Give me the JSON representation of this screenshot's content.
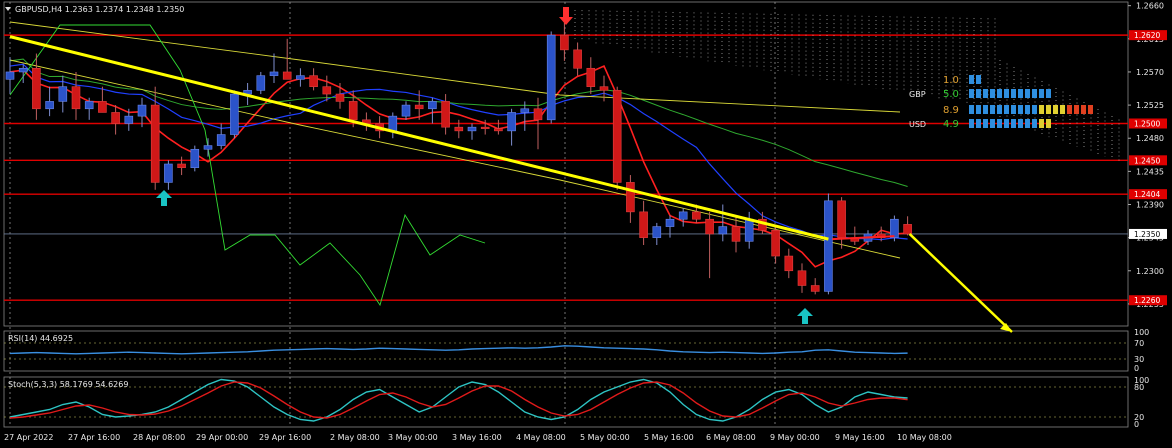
{
  "colors": {
    "background": "#000000",
    "bull_candle": "#2b53c9",
    "bear_candle": "#d01818",
    "level_line": "#e00000",
    "trend_line": "#ffff00",
    "ma_red": "#ff2020",
    "ma_blue": "#2040ff",
    "ma_green": "#2fa82f",
    "ma_yellow": "#d8d838",
    "lime": "#33dd33",
    "rsi": "#3a8fe0",
    "stoch_main": "#2ec4c4",
    "stoch_signal": "#e01a1a",
    "arrow_cyan": "#19c4c4",
    "grid": "#bfbfbf"
  },
  "header": {
    "symbol_line": "GBPUSD,H4  1.2363 1.2374 1.2348 1.2350"
  },
  "strength_panel": {
    "rows": [
      {
        "label": "",
        "value": "1.0",
        "color": "#e0a030"
      },
      {
        "label": "GBP",
        "value": "5.0",
        "color": "#33cc33"
      },
      {
        "label": "",
        "value": "8.9",
        "color": "#e0a030"
      },
      {
        "label": "USD",
        "value": "4.9",
        "color": "#33cc33"
      }
    ]
  },
  "chart_data": {
    "type": "candlestick",
    "symbol": "GBPUSD",
    "timeframe": "H4",
    "ohlc_header": {
      "open": 1.2363,
      "high": 1.2374,
      "low": 1.2348,
      "close": 1.235
    },
    "x_tick_labels": [
      "27 Apr 2022",
      "27 Apr 16:00",
      "28 Apr 08:00",
      "29 Apr 00:00",
      "29 Apr 16:00",
      "2 May 08:00",
      "3 May 00:00",
      "3 May 16:00",
      "4 May 08:00",
      "5 May 00:00",
      "5 May 16:00",
      "6 May 08:00",
      "9 May 00:00",
      "9 May 16:00",
      "10 May 08:00"
    ],
    "y_ticks": [
      1.266,
      1.2615,
      1.257,
      1.2525,
      1.248,
      1.2435,
      1.239,
      1.2345,
      1.23,
      1.2255
    ],
    "ylim": [
      1.2225,
      1.2665
    ],
    "current_price": 1.235,
    "level_tags": [
      1.262,
      1.25,
      1.245,
      1.2404,
      1.226
    ],
    "candles": [
      {
        "o": 1.256,
        "h": 1.259,
        "l": 1.254,
        "c": 1.257
      },
      {
        "o": 1.257,
        "h": 1.258,
        "l": 1.2555,
        "c": 1.2575
      },
      {
        "o": 1.2575,
        "h": 1.2595,
        "l": 1.2505,
        "c": 1.252
      },
      {
        "o": 1.252,
        "h": 1.255,
        "l": 1.251,
        "c": 1.253
      },
      {
        "o": 1.253,
        "h": 1.2565,
        "l": 1.2515,
        "c": 1.255
      },
      {
        "o": 1.255,
        "h": 1.257,
        "l": 1.2505,
        "c": 1.252
      },
      {
        "o": 1.252,
        "h": 1.2535,
        "l": 1.2505,
        "c": 1.253
      },
      {
        "o": 1.253,
        "h": 1.255,
        "l": 1.2515,
        "c": 1.2515
      },
      {
        "o": 1.2515,
        "h": 1.2525,
        "l": 1.2485,
        "c": 1.25
      },
      {
        "o": 1.25,
        "h": 1.252,
        "l": 1.249,
        "c": 1.251
      },
      {
        "o": 1.251,
        "h": 1.2535,
        "l": 1.2495,
        "c": 1.2525
      },
      {
        "o": 1.2525,
        "h": 1.255,
        "l": 1.241,
        "c": 1.242
      },
      {
        "o": 1.242,
        "h": 1.245,
        "l": 1.241,
        "c": 1.2445
      },
      {
        "o": 1.2445,
        "h": 1.2455,
        "l": 1.243,
        "c": 1.244
      },
      {
        "o": 1.244,
        "h": 1.247,
        "l": 1.2435,
        "c": 1.2465
      },
      {
        "o": 1.2465,
        "h": 1.248,
        "l": 1.2455,
        "c": 1.247
      },
      {
        "o": 1.247,
        "h": 1.25,
        "l": 1.2465,
        "c": 1.2485
      },
      {
        "o": 1.2485,
        "h": 1.2545,
        "l": 1.248,
        "c": 1.254
      },
      {
        "o": 1.254,
        "h": 1.2555,
        "l": 1.2525,
        "c": 1.2545
      },
      {
        "o": 1.2545,
        "h": 1.257,
        "l": 1.254,
        "c": 1.2565
      },
      {
        "o": 1.2565,
        "h": 1.2595,
        "l": 1.2555,
        "c": 1.257
      },
      {
        "o": 1.257,
        "h": 1.2615,
        "l": 1.256,
        "c": 1.256
      },
      {
        "o": 1.256,
        "h": 1.2575,
        "l": 1.255,
        "c": 1.2565
      },
      {
        "o": 1.2565,
        "h": 1.2575,
        "l": 1.2545,
        "c": 1.255
      },
      {
        "o": 1.255,
        "h": 1.2565,
        "l": 1.253,
        "c": 1.254
      },
      {
        "o": 1.254,
        "h": 1.2555,
        "l": 1.252,
        "c": 1.253
      },
      {
        "o": 1.253,
        "h": 1.2545,
        "l": 1.2495,
        "c": 1.2505
      },
      {
        "o": 1.2505,
        "h": 1.2515,
        "l": 1.249,
        "c": 1.25
      },
      {
        "o": 1.25,
        "h": 1.251,
        "l": 1.248,
        "c": 1.249
      },
      {
        "o": 1.249,
        "h": 1.2515,
        "l": 1.248,
        "c": 1.251
      },
      {
        "o": 1.251,
        "h": 1.253,
        "l": 1.2505,
        "c": 1.2525
      },
      {
        "o": 1.2525,
        "h": 1.2545,
        "l": 1.2505,
        "c": 1.252
      },
      {
        "o": 1.252,
        "h": 1.2535,
        "l": 1.25,
        "c": 1.253
      },
      {
        "o": 1.253,
        "h": 1.254,
        "l": 1.2485,
        "c": 1.2495
      },
      {
        "o": 1.2495,
        "h": 1.2505,
        "l": 1.248,
        "c": 1.249
      },
      {
        "o": 1.249,
        "h": 1.25,
        "l": 1.2478,
        "c": 1.2495
      },
      {
        "o": 1.2495,
        "h": 1.2505,
        "l": 1.2485,
        "c": 1.2493
      },
      {
        "o": 1.2493,
        "h": 1.2505,
        "l": 1.2485,
        "c": 1.249
      },
      {
        "o": 1.249,
        "h": 1.252,
        "l": 1.247,
        "c": 1.2515
      },
      {
        "o": 1.2515,
        "h": 1.253,
        "l": 1.249,
        "c": 1.252
      },
      {
        "o": 1.252,
        "h": 1.2535,
        "l": 1.2465,
        "c": 1.2505
      },
      {
        "o": 1.2505,
        "h": 1.2625,
        "l": 1.25,
        "c": 1.262
      },
      {
        "o": 1.262,
        "h": 1.264,
        "l": 1.2585,
        "c": 1.26
      },
      {
        "o": 1.26,
        "h": 1.261,
        "l": 1.2565,
        "c": 1.2575
      },
      {
        "o": 1.2575,
        "h": 1.259,
        "l": 1.254,
        "c": 1.255
      },
      {
        "o": 1.255,
        "h": 1.2565,
        "l": 1.253,
        "c": 1.2545
      },
      {
        "o": 1.2545,
        "h": 1.255,
        "l": 1.241,
        "c": 1.242
      },
      {
        "o": 1.242,
        "h": 1.243,
        "l": 1.2365,
        "c": 1.238
      },
      {
        "o": 1.238,
        "h": 1.2395,
        "l": 1.2335,
        "c": 1.2345
      },
      {
        "o": 1.2345,
        "h": 1.2365,
        "l": 1.2335,
        "c": 1.236
      },
      {
        "o": 1.236,
        "h": 1.2375,
        "l": 1.2345,
        "c": 1.237
      },
      {
        "o": 1.237,
        "h": 1.2385,
        "l": 1.236,
        "c": 1.238
      },
      {
        "o": 1.238,
        "h": 1.239,
        "l": 1.2365,
        "c": 1.237
      },
      {
        "o": 1.237,
        "h": 1.238,
        "l": 1.229,
        "c": 1.235
      },
      {
        "o": 1.235,
        "h": 1.239,
        "l": 1.234,
        "c": 1.236
      },
      {
        "o": 1.236,
        "h": 1.2375,
        "l": 1.2325,
        "c": 1.234
      },
      {
        "o": 1.234,
        "h": 1.238,
        "l": 1.233,
        "c": 1.237
      },
      {
        "o": 1.237,
        "h": 1.238,
        "l": 1.235,
        "c": 1.2355
      },
      {
        "o": 1.2355,
        "h": 1.236,
        "l": 1.231,
        "c": 1.232
      },
      {
        "o": 1.232,
        "h": 1.233,
        "l": 1.229,
        "c": 1.23
      },
      {
        "o": 1.23,
        "h": 1.231,
        "l": 1.227,
        "c": 1.228
      },
      {
        "o": 1.228,
        "h": 1.229,
        "l": 1.2268,
        "c": 1.2272
      },
      {
        "o": 1.2272,
        "h": 1.2405,
        "l": 1.2268,
        "c": 1.2395
      },
      {
        "o": 1.2395,
        "h": 1.24,
        "l": 1.233,
        "c": 1.2345
      },
      {
        "o": 1.2345,
        "h": 1.236,
        "l": 1.2335,
        "c": 1.234
      },
      {
        "o": 1.234,
        "h": 1.2355,
        "l": 1.2335,
        "c": 1.235
      },
      {
        "o": 1.235,
        "h": 1.236,
        "l": 1.234,
        "c": 1.2345
      },
      {
        "o": 1.2345,
        "h": 1.2375,
        "l": 1.234,
        "c": 1.237
      },
      {
        "o": 1.2363,
        "h": 1.2374,
        "l": 1.2348,
        "c": 1.235
      }
    ],
    "trend_line": [
      {
        "bar": 0,
        "price": 1.2618
      },
      {
        "bar": 62,
        "price": 1.2343
      }
    ],
    "projection_arrow": [
      {
        "bar": 68,
        "price": 1.235
      },
      {
        "bar": 75,
        "price": 1.224
      }
    ],
    "rsi": {
      "label": "RSI(14) 44.6925",
      "value": 44.6925,
      "levels": [
        70,
        30
      ],
      "scale_labels": [
        "100",
        "70",
        "30",
        "0"
      ],
      "values": [
        44,
        45,
        46,
        45,
        44,
        43,
        44,
        45,
        46,
        47,
        46,
        45,
        44,
        43,
        44,
        45,
        46,
        47,
        48,
        50,
        52,
        53,
        54,
        55,
        56,
        55,
        54,
        55,
        57,
        56,
        55,
        54,
        53,
        52,
        53,
        55,
        56,
        57,
        58,
        57,
        58,
        60,
        63,
        62,
        60,
        58,
        57,
        56,
        55,
        53,
        50,
        48,
        47,
        46,
        47,
        46,
        45,
        44,
        45,
        47,
        48,
        52,
        53,
        50,
        47,
        46,
        45,
        44,
        44.7
      ]
    },
    "stoch": {
      "label": "Stoch(5,3,3) 58.1769 54.6269",
      "main_value": 58.1769,
      "signal_value": 54.6269,
      "levels": [
        80,
        20
      ],
      "scale_labels": [
        "100",
        "80",
        "20",
        "0"
      ],
      "main": [
        20,
        25,
        30,
        35,
        45,
        50,
        40,
        25,
        20,
        22,
        25,
        30,
        40,
        55,
        70,
        85,
        95,
        92,
        80,
        60,
        40,
        25,
        15,
        12,
        20,
        35,
        55,
        70,
        75,
        60,
        45,
        30,
        40,
        60,
        80,
        90,
        85,
        70,
        50,
        30,
        20,
        15,
        20,
        35,
        55,
        70,
        80,
        90,
        95,
        88,
        70,
        45,
        25,
        15,
        12,
        20,
        35,
        55,
        70,
        75,
        65,
        45,
        30,
        40,
        60,
        70,
        65,
        60,
        58
      ],
      "signal": [
        18,
        20,
        24,
        28,
        35,
        42,
        44,
        38,
        30,
        25,
        24,
        26,
        32,
        42,
        55,
        68,
        82,
        90,
        88,
        78,
        62,
        45,
        30,
        20,
        18,
        25,
        38,
        52,
        65,
        68,
        60,
        48,
        40,
        45,
        58,
        72,
        82,
        82,
        72,
        55,
        40,
        28,
        22,
        25,
        35,
        50,
        65,
        78,
        88,
        90,
        84,
        68,
        48,
        32,
        22,
        20,
        25,
        38,
        52,
        65,
        68,
        60,
        48,
        42,
        48,
        55,
        58,
        58,
        54.6
      ]
    }
  }
}
